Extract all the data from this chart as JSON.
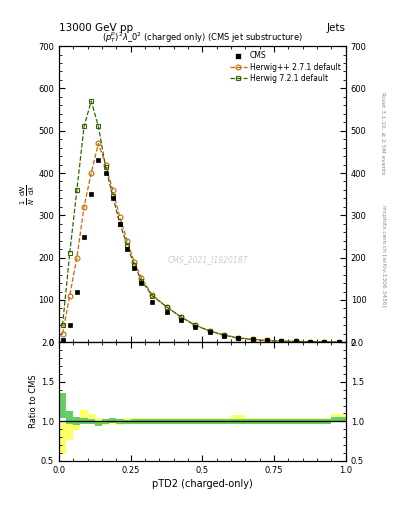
{
  "title_top": "13000 GeV pp",
  "title_right": "Jets",
  "plot_title": "$(p_T^p)^2\\lambda\\_0^2$ (charged only) (CMS jet substructure)",
  "right_label_top": "Rivet 3.1.10, ≥ 2.5M events",
  "right_label_bottom": "mcplots.cern.ch [arXiv:1306.3436]",
  "watermark": "CMS_2021_I1920187",
  "xlabel": "pTD2 (charged-only)",
  "ylabel_ratio": "Ratio to CMS",
  "cms_bin_edges": [
    0.0,
    0.025,
    0.05,
    0.075,
    0.1,
    0.125,
    0.15,
    0.175,
    0.2,
    0.225,
    0.25,
    0.275,
    0.3,
    0.35,
    0.4,
    0.45,
    0.5,
    0.55,
    0.6,
    0.65,
    0.7,
    0.75,
    0.8,
    0.85,
    0.9,
    0.95,
    1.0
  ],
  "cms_y": [
    5,
    40,
    120,
    250,
    350,
    430,
    400,
    340,
    280,
    220,
    175,
    140,
    95,
    72,
    52,
    36,
    24,
    16,
    11,
    7,
    5,
    3,
    2,
    1.5,
    1,
    0.5
  ],
  "herwig_pp_x": [
    0.0125,
    0.0375,
    0.0625,
    0.0875,
    0.1125,
    0.1375,
    0.1625,
    0.1875,
    0.2125,
    0.2375,
    0.2625,
    0.2875,
    0.325,
    0.375,
    0.425,
    0.475,
    0.525,
    0.575,
    0.625,
    0.675,
    0.725,
    0.775,
    0.825,
    0.875,
    0.925,
    0.975
  ],
  "herwig_pp_y": [
    20,
    110,
    200,
    320,
    400,
    470,
    420,
    360,
    295,
    240,
    190,
    152,
    112,
    84,
    60,
    41,
    27,
    17,
    11,
    7,
    4.5,
    3,
    2,
    1.5,
    1,
    0.5
  ],
  "herwig7_x": [
    0.0125,
    0.0375,
    0.0625,
    0.0875,
    0.1125,
    0.1375,
    0.1625,
    0.1875,
    0.2125,
    0.2375,
    0.2625,
    0.2875,
    0.325,
    0.375,
    0.425,
    0.475,
    0.525,
    0.575,
    0.625,
    0.675,
    0.725,
    0.775,
    0.825,
    0.875,
    0.925,
    0.975
  ],
  "herwig7_y": [
    40,
    210,
    360,
    510,
    570,
    510,
    415,
    345,
    280,
    230,
    182,
    146,
    110,
    84,
    60,
    40,
    27,
    17,
    10,
    6.5,
    4,
    2.8,
    2,
    1.5,
    1,
    0.5
  ],
  "ratio_x": [
    0.0125,
    0.0375,
    0.0625,
    0.0875,
    0.1125,
    0.1375,
    0.1625,
    0.1875,
    0.2125,
    0.2375,
    0.2625,
    0.2875,
    0.325,
    0.375,
    0.425,
    0.475,
    0.525,
    0.575,
    0.625,
    0.675,
    0.725,
    0.775,
    0.825,
    0.875,
    0.925,
    0.975
  ],
  "ratio_bin_widths": [
    0.025,
    0.025,
    0.025,
    0.025,
    0.025,
    0.025,
    0.025,
    0.025,
    0.025,
    0.025,
    0.025,
    0.025,
    0.05,
    0.05,
    0.05,
    0.05,
    0.05,
    0.05,
    0.05,
    0.05,
    0.05,
    0.05,
    0.05,
    0.05,
    0.05,
    0.05
  ],
  "ratio_herwig_pp": [
    1.2,
    1.05,
    1.0,
    1.0,
    1.0,
    0.97,
    1.0,
    1.01,
    1.0,
    0.99,
    1.0,
    1.0,
    1.0,
    1.0,
    1.0,
    1.0,
    1.0,
    1.0,
    1.0,
    1.0,
    1.0,
    1.0,
    1.0,
    1.0,
    1.0,
    1.02
  ],
  "ratio_herwig7": [
    0.78,
    0.88,
    0.97,
    1.08,
    1.04,
    1.0,
    0.99,
    1.0,
    0.99,
    1.0,
    1.0,
    1.0,
    1.0,
    1.0,
    1.0,
    1.0,
    1.0,
    1.0,
    1.03,
    1.0,
    1.0,
    1.0,
    1.0,
    1.0,
    1.0,
    1.04
  ],
  "ratio_herwig_pp_lo": [
    1.04,
    0.97,
    0.95,
    0.96,
    0.97,
    0.94,
    0.97,
    0.98,
    0.97,
    0.96,
    0.97,
    0.97,
    0.97,
    0.97,
    0.97,
    0.97,
    0.97,
    0.97,
    0.97,
    0.97,
    0.97,
    0.97,
    0.97,
    0.97,
    0.97,
    0.99
  ],
  "ratio_herwig_pp_hi": [
    1.36,
    1.13,
    1.05,
    1.04,
    1.03,
    1.0,
    1.03,
    1.04,
    1.03,
    1.02,
    1.03,
    1.03,
    1.03,
    1.03,
    1.03,
    1.03,
    1.03,
    1.03,
    1.03,
    1.03,
    1.03,
    1.03,
    1.03,
    1.03,
    1.03,
    1.05
  ],
  "ratio_herwig7_lo": [
    0.58,
    0.76,
    0.89,
    1.02,
    0.99,
    0.96,
    0.95,
    0.96,
    0.95,
    0.96,
    0.96,
    0.96,
    0.96,
    0.96,
    0.96,
    0.96,
    0.96,
    0.96,
    0.98,
    0.96,
    0.96,
    0.96,
    0.96,
    0.96,
    0.96,
    0.99
  ],
  "ratio_herwig7_hi": [
    0.98,
    1.0,
    1.05,
    1.14,
    1.09,
    1.04,
    1.03,
    1.04,
    1.03,
    1.04,
    1.04,
    1.04,
    1.04,
    1.04,
    1.04,
    1.04,
    1.04,
    1.04,
    1.08,
    1.04,
    1.04,
    1.04,
    1.04,
    1.04,
    1.04,
    1.09
  ],
  "color_cms": "#000000",
  "color_herwig_pp": "#cc6600",
  "color_herwig7": "#336600",
  "color_ratio_yellow": "#ffff66",
  "color_ratio_green": "#66cc66",
  "ylim_main": [
    0,
    700
  ],
  "ylim_ratio": [
    0.5,
    2.0
  ],
  "xlim": [
    0.0,
    1.0
  ],
  "yticks_main": [
    0,
    100,
    200,
    300,
    400,
    500,
    600,
    700
  ],
  "yticks_ratio": [
    0.5,
    1.0,
    1.5,
    2.0
  ],
  "xticks": [
    0.0,
    0.25,
    0.5,
    0.75,
    1.0
  ]
}
